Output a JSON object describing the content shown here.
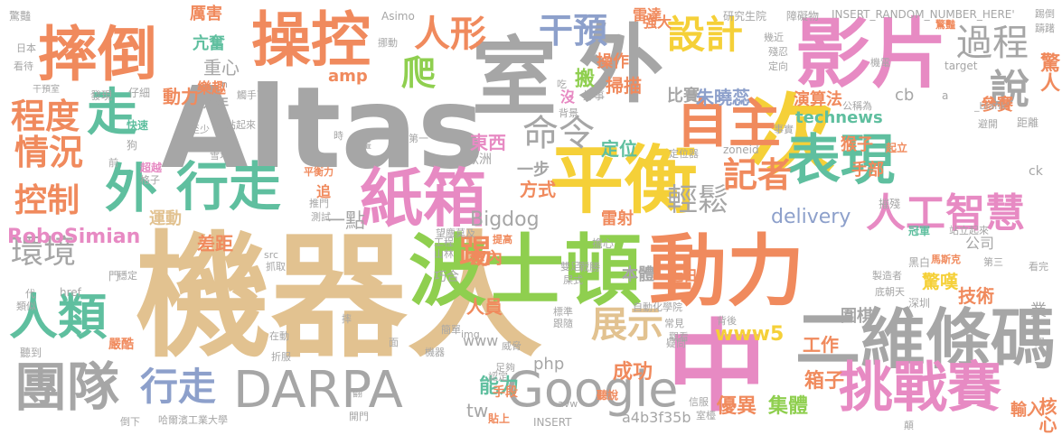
{
  "palette": {
    "tan": "#e2c290",
    "gray": "#a6a6a6",
    "green": "#8fcf4f",
    "orange": "#f08a5d",
    "teal": "#5fbf9f",
    "pink": "#e78ac3",
    "blue": "#8da0cb",
    "yellow": "#f5d038"
  },
  "words": [
    {
      "text": "機器人",
      "color": "tan"
    },
    {
      "text": "Altas",
      "color": "gray"
    },
    {
      "text": "波士頓",
      "color": "green"
    },
    {
      "text": "動力",
      "color": "orange"
    },
    {
      "text": "平衡",
      "color": "yellow"
    },
    {
      "text": "室",
      "color": "gray"
    },
    {
      "text": "外",
      "color": "gray"
    },
    {
      "text": "次",
      "color": "yellow"
    },
    {
      "text": "影片",
      "color": "pink"
    },
    {
      "text": "二維條碼",
      "color": "gray"
    },
    {
      "text": "中",
      "color": "pink"
    },
    {
      "text": "DARPA",
      "color": "gray"
    },
    {
      "text": "Google",
      "color": "gray"
    },
    {
      "text": "摔倒",
      "color": "orange"
    },
    {
      "text": "操控",
      "color": "orange"
    },
    {
      "text": "紙箱",
      "color": "pink"
    },
    {
      "text": "表現",
      "color": "teal"
    },
    {
      "text": "自主",
      "color": "orange"
    },
    {
      "text": "挑戰賽",
      "color": "pink"
    },
    {
      "text": "團隊",
      "color": "gray"
    },
    {
      "text": "行走",
      "color": "teal"
    },
    {
      "text": "外",
      "color": "teal"
    },
    {
      "text": "走",
      "color": "teal"
    },
    {
      "text": "人類",
      "color": "teal"
    },
    {
      "text": "設計",
      "color": "yellow"
    },
    {
      "text": "說",
      "color": "gray"
    },
    {
      "text": "人工智慧",
      "color": "pink"
    },
    {
      "text": "人形",
      "color": "orange"
    },
    {
      "text": "過程",
      "color": "gray"
    },
    {
      "text": "程度",
      "color": "orange"
    },
    {
      "text": "情況",
      "color": "orange"
    },
    {
      "text": "控制",
      "color": "orange"
    },
    {
      "text": "環境",
      "color": "gray"
    },
    {
      "text": "行走",
      "color": "blue"
    },
    {
      "text": "命令",
      "color": "gray"
    },
    {
      "text": "干預",
      "color": "blue"
    },
    {
      "text": "記者",
      "color": "orange"
    },
    {
      "text": "爬",
      "color": "green"
    },
    {
      "text": "踢",
      "color": "orange"
    },
    {
      "text": "展示",
      "color": "tan"
    },
    {
      "text": "輕鬆",
      "color": "gray"
    },
    {
      "text": "RoboSimian",
      "color": "pink"
    },
    {
      "text": "一點",
      "color": "gray"
    },
    {
      "text": "Bigdog",
      "color": "gray"
    },
    {
      "text": "delivery",
      "color": "blue"
    },
    {
      "text": "technews",
      "color": "teal"
    },
    {
      "text": "www5",
      "color": "yellow"
    },
    {
      "text": "能力",
      "color": "teal"
    },
    {
      "text": "成功",
      "color": "orange"
    },
    {
      "text": "優異",
      "color": "orange"
    },
    {
      "text": "集體",
      "color": "green"
    },
    {
      "text": "箱子",
      "color": "orange"
    },
    {
      "text": "工作",
      "color": "orange"
    },
    {
      "text": "驚嘆",
      "color": "yellow"
    },
    {
      "text": "技術",
      "color": "orange"
    },
    {
      "text": "參賽",
      "color": "orange"
    },
    {
      "text": "驚人",
      "color": "orange"
    },
    {
      "text": "猴子",
      "color": "orange"
    },
    {
      "text": "手部",
      "color": "orange"
    },
    {
      "text": "演算法",
      "color": "orange"
    },
    {
      "text": "比賽",
      "color": "gray"
    },
    {
      "text": "朱曉蕊",
      "color": "blue"
    },
    {
      "text": "掃描",
      "color": "orange"
    },
    {
      "text": "操作",
      "color": "orange"
    },
    {
      "text": "搬",
      "color": "green"
    },
    {
      "text": "強大",
      "color": "orange"
    },
    {
      "text": "雷達",
      "color": "orange"
    },
    {
      "text": "東西",
      "color": "pink"
    },
    {
      "text": "定位",
      "color": "teal"
    },
    {
      "text": "方式",
      "color": "orange"
    },
    {
      "text": "一步",
      "color": "gray"
    },
    {
      "text": "雷射",
      "color": "orange"
    },
    {
      "text": "人員",
      "color": "orange"
    },
    {
      "text": "室內",
      "color": "orange"
    },
    {
      "text": "差距",
      "color": "orange"
    },
    {
      "text": "運動",
      "color": "tan"
    },
    {
      "text": "動力",
      "color": "orange"
    },
    {
      "text": "重心",
      "color": "gray"
    },
    {
      "text": "厲害",
      "color": "orange"
    },
    {
      "text": "亢奮",
      "color": "teal"
    },
    {
      "text": "樂趣",
      "color": "orange"
    },
    {
      "text": "過年",
      "color": "gray"
    },
    {
      "text": "amp",
      "color": "orange"
    },
    {
      "text": "cb",
      "color": "gray"
    },
    {
      "text": "php",
      "color": "gray"
    },
    {
      "text": "www",
      "color": "gray"
    },
    {
      "text": "tw",
      "color": "gray"
    },
    {
      "text": "本體",
      "color": "gray"
    },
    {
      "text": "圍棋",
      "color": "gray"
    },
    {
      "text": "公司",
      "color": "gray"
    },
    {
      "text": "業",
      "color": "gray"
    },
    {
      "text": "核心",
      "color": "orange"
    },
    {
      "text": "輸入",
      "color": "orange"
    },
    {
      "text": "a4b3f35b",
      "color": "gray"
    },
    {
      "text": "INSERT_RANDOM_NUMBER_HERE'",
      "color": "gray"
    },
    {
      "text": "INSERT",
      "color": "gray"
    },
    {
      "text": "研究生院",
      "color": "gray"
    },
    {
      "text": "障礙物",
      "color": "gray"
    },
    {
      "text": "Asimo",
      "color": "gray"
    },
    {
      "text": "驚豔",
      "color": "gray"
    },
    {
      "text": "日本",
      "color": "gray"
    },
    {
      "text": "看待",
      "color": "gray"
    },
    {
      "text": "干預室",
      "color": "gray"
    },
    {
      "text": "發現",
      "color": "gray"
    },
    {
      "text": "仔細",
      "color": "gray"
    },
    {
      "text": "快速",
      "color": "teal"
    },
    {
      "text": "狗",
      "color": "gray"
    },
    {
      "text": "至少",
      "color": "gray"
    },
    {
      "text": "觸手可及",
      "color": "gray"
    },
    {
      "text": "站起來",
      "color": "gray"
    },
    {
      "text": "雪地",
      "color": "gray"
    },
    {
      "text": "超越",
      "color": "pink"
    },
    {
      "text": "格子",
      "color": "gray"
    },
    {
      "text": "前",
      "color": "gray"
    },
    {
      "text": "平衡力",
      "color": "orange"
    },
    {
      "text": "推門",
      "color": "gray"
    },
    {
      "text": "測試",
      "color": "gray"
    },
    {
      "text": "追",
      "color": "orange"
    },
    {
      "text": "挪動",
      "color": "gray"
    },
    {
      "text": "吃",
      "color": "gray"
    },
    {
      "text": "沒",
      "color": "pink"
    },
    {
      "text": "好事",
      "color": "gray"
    },
    {
      "text": "背景",
      "color": "gray"
    },
    {
      "text": "第一",
      "color": "gray"
    },
    {
      "text": "歐洲",
      "color": "gray"
    },
    {
      "text": "定位器",
      "color": "gray"
    },
    {
      "text": "zoneid",
      "color": "gray"
    },
    {
      "text": "_blank'",
      "color": "gray"
    },
    {
      "text": "target",
      "color": "gray"
    },
    {
      "text": "公稱為",
      "color": "gray"
    },
    {
      "text": "事實",
      "color": "gray"
    },
    {
      "text": "避開",
      "color": "gray"
    },
    {
      "text": "距離",
      "color": "gray"
    },
    {
      "text": "起立",
      "color": "orange"
    },
    {
      "text": "ck",
      "color": "gray"
    },
    {
      "text": "摧殘",
      "color": "gray"
    },
    {
      "text": "冠軍",
      "color": "teal"
    },
    {
      "text": "馬斯克",
      "color": "orange"
    },
    {
      "text": "站立起來",
      "color": "gray"
    },
    {
      "text": "擔心",
      "color": "gray"
    },
    {
      "text": "戰勝",
      "color": "gray"
    },
    {
      "text": "近日",
      "color": "orange"
    },
    {
      "text": "黑白",
      "color": "gray"
    },
    {
      "text": "看完",
      "color": "gray"
    },
    {
      "text": "第三",
      "color": "gray"
    },
    {
      "text": "製造者",
      "color": "gray"
    },
    {
      "text": "底朝天",
      "color": "gray"
    },
    {
      "text": "深圳",
      "color": "gray"
    },
    {
      "text": "自動化學院",
      "color": "gray"
    },
    {
      "text": "背後",
      "color": "gray"
    },
    {
      "text": "常見",
      "color": "gray"
    },
    {
      "text": "疑問",
      "color": "gray"
    },
    {
      "text": "觀看",
      "color": "gray"
    },
    {
      "text": "標準",
      "color": "gray"
    },
    {
      "text": "跟隨",
      "color": "gray"
    },
    {
      "text": "巧合",
      "color": "gray"
    },
    {
      "text": "屎式",
      "color": "gray"
    },
    {
      "text": "雙足",
      "color": "gray"
    },
    {
      "text": "提高",
      "color": "orange"
    },
    {
      "text": "門",
      "color": "gray"
    },
    {
      "text": "穩定",
      "color": "gray"
    },
    {
      "text": "src",
      "color": "gray"
    },
    {
      "text": "抓取",
      "color": "gray"
    },
    {
      "text": "href",
      "color": "gray"
    },
    {
      "text": "類似",
      "color": "gray"
    },
    {
      "text": "代",
      "color": "gray"
    },
    {
      "text": "聽到",
      "color": "gray"
    },
    {
      "text": "嚴酷",
      "color": "orange"
    },
    {
      "text": "在動",
      "color": "gray"
    },
    {
      "text": "折服",
      "color": "gray"
    },
    {
      "text": "倒下",
      "color": "gray"
    },
    {
      "text": "哈爾濱工業大學",
      "color": "gray"
    },
    {
      "text": "簡單",
      "color": "gray"
    },
    {
      "text": "機器",
      "color": "gray"
    },
    {
      "text": "img",
      "color": "gray"
    },
    {
      "text": "威脅",
      "color": "gray"
    },
    {
      "text": "足夠",
      "color": "gray"
    },
    {
      "text": "認定",
      "color": "gray"
    },
    {
      "text": "手段",
      "color": "orange"
    },
    {
      "text": "開門",
      "color": "gray"
    },
    {
      "text": "貼上",
      "color": "orange"
    },
    {
      "text": "聽說",
      "color": "orange"
    },
    {
      "text": "avw",
      "color": "gray"
    },
    {
      "text": "信服",
      "color": "gray"
    },
    {
      "text": "室檯",
      "color": "gray"
    },
    {
      "text": "望塵莫及",
      "color": "gray"
    },
    {
      "text": "工程",
      "color": "gray"
    },
    {
      "text": "山林",
      "color": "gray"
    },
    {
      "text": "n",
      "color": "gray"
    },
    {
      "text": "a",
      "color": "gray"
    },
    {
      "text": "時",
      "color": "gray"
    },
    {
      "text": "躊躇",
      "color": "gray"
    },
    {
      "text": "定向",
      "color": "gray"
    },
    {
      "text": "幾近",
      "color": "gray"
    },
    {
      "text": "殘忍",
      "color": "gray"
    },
    {
      "text": "驚豔",
      "color": "orange"
    },
    {
      "text": "踢倒",
      "color": "gray"
    },
    {
      "text": "機電",
      "color": "gray"
    },
    {
      "text": "畫",
      "color": "gray"
    },
    {
      "text": "摔",
      "color": "gray"
    },
    {
      "text": "面",
      "color": "gray"
    },
    {
      "text": "躍",
      "color": "gray"
    },
    {
      "text": "翻",
      "color": "gray"
    },
    {
      "text": "顛",
      "color": "gray"
    }
  ]
}
